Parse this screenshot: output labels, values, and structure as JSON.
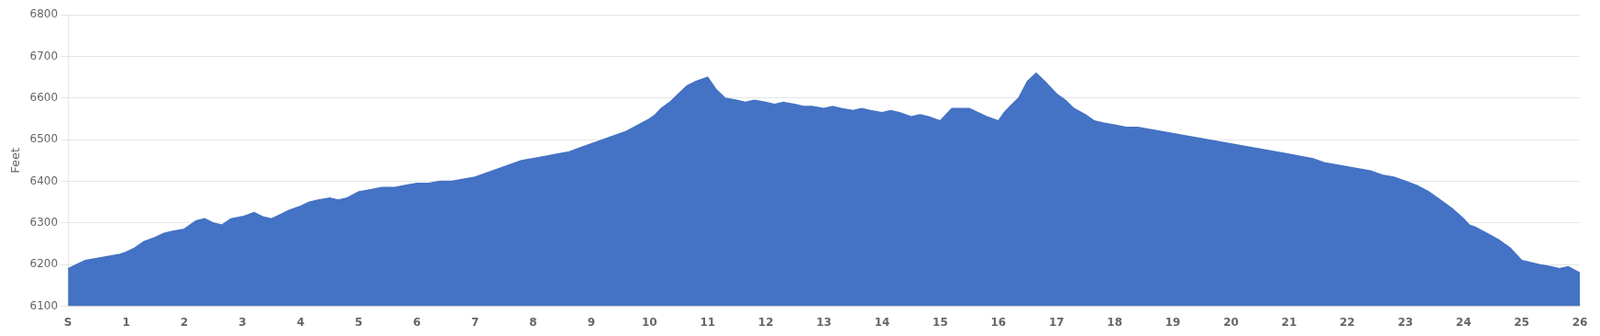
{
  "chart_data": {
    "type": "area",
    "ylabel": "Feet",
    "x": [
      0,
      0.15,
      0.3,
      0.5,
      0.7,
      0.9,
      1.0,
      1.15,
      1.3,
      1.5,
      1.65,
      1.8,
      2.0,
      2.1,
      2.2,
      2.35,
      2.5,
      2.65,
      2.8,
      3.0,
      3.1,
      3.2,
      3.35,
      3.5,
      3.65,
      3.8,
      4.0,
      4.15,
      4.3,
      4.5,
      4.65,
      4.8,
      5.0,
      5.2,
      5.4,
      5.6,
      5.8,
      6.0,
      6.2,
      6.4,
      6.6,
      6.8,
      7.0,
      7.2,
      7.4,
      7.6,
      7.8,
      8.0,
      8.2,
      8.4,
      8.6,
      8.8,
      9.0,
      9.2,
      9.4,
      9.6,
      9.8,
      10.0,
      10.1,
      10.2,
      10.35,
      10.5,
      10.65,
      10.8,
      11.0,
      11.15,
      11.3,
      11.5,
      11.65,
      11.8,
      12.0,
      12.15,
      12.3,
      12.5,
      12.65,
      12.8,
      13.0,
      13.15,
      13.3,
      13.5,
      13.65,
      13.8,
      14.0,
      14.15,
      14.3,
      14.5,
      14.65,
      14.8,
      15.0,
      15.1,
      15.2,
      15.35,
      15.5,
      15.65,
      15.8,
      16.0,
      16.1,
      16.2,
      16.35,
      16.5,
      16.65,
      16.8,
      17.0,
      17.15,
      17.3,
      17.5,
      17.65,
      17.8,
      18.0,
      18.2,
      18.4,
      18.6,
      18.8,
      19.0,
      19.2,
      19.4,
      19.6,
      19.8,
      20.0,
      20.2,
      20.4,
      20.6,
      20.8,
      21.0,
      21.2,
      21.4,
      21.6,
      21.8,
      22.0,
      22.2,
      22.4,
      22.6,
      22.8,
      23.0,
      23.2,
      23.4,
      23.6,
      23.8,
      24.0,
      24.1,
      24.2,
      24.4,
      24.6,
      24.8,
      25.0,
      25.15,
      25.3,
      25.5,
      25.65,
      25.8,
      26.0
    ],
    "values": [
      6190,
      6200,
      6210,
      6215,
      6220,
      6225,
      6230,
      6240,
      6255,
      6265,
      6275,
      6280,
      6285,
      6295,
      6305,
      6310,
      6300,
      6295,
      6310,
      6315,
      6320,
      6325,
      6315,
      6310,
      6320,
      6330,
      6340,
      6350,
      6355,
      6360,
      6355,
      6360,
      6375,
      6380,
      6385,
      6385,
      6390,
      6395,
      6395,
      6400,
      6400,
      6405,
      6410,
      6420,
      6430,
      6440,
      6450,
      6455,
      6460,
      6465,
      6470,
      6480,
      6490,
      6500,
      6510,
      6520,
      6535,
      6550,
      6560,
      6575,
      6590,
      6610,
      6630,
      6640,
      6650,
      6620,
      6600,
      6595,
      6590,
      6595,
      6590,
      6585,
      6590,
      6585,
      6580,
      6580,
      6575,
      6580,
      6575,
      6570,
      6575,
      6570,
      6565,
      6570,
      6565,
      6555,
      6560,
      6555,
      6545,
      6560,
      6575,
      6575,
      6575,
      6565,
      6555,
      6545,
      6565,
      6580,
      6600,
      6640,
      6660,
      6640,
      6610,
      6595,
      6575,
      6560,
      6545,
      6540,
      6535,
      6530,
      6530,
      6525,
      6520,
      6515,
      6510,
      6505,
      6500,
      6495,
      6490,
      6485,
      6480,
      6475,
      6470,
      6465,
      6460,
      6455,
      6445,
      6440,
      6435,
      6430,
      6425,
      6415,
      6410,
      6400,
      6390,
      6375,
      6355,
      6335,
      6310,
      6295,
      6290,
      6275,
      6260,
      6240,
      6210,
      6205,
      6200,
      6195,
      6190,
      6195,
      6180
    ],
    "color": "#4472c4",
    "xlim": [
      0,
      26
    ],
    "ylim": [
      6100,
      6800
    ],
    "xticks": [
      {
        "value": 0,
        "label": "S"
      },
      1,
      2,
      3,
      4,
      5,
      6,
      7,
      8,
      9,
      10,
      11,
      12,
      13,
      14,
      15,
      16,
      17,
      18,
      19,
      20,
      21,
      22,
      23,
      24,
      25,
      26
    ],
    "yticks": [
      6100,
      6200,
      6300,
      6400,
      6500,
      6600,
      6700,
      6800
    ],
    "grid": "y"
  }
}
